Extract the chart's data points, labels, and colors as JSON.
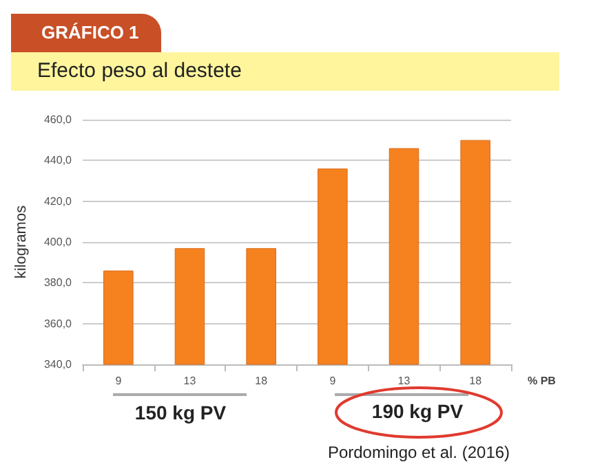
{
  "chart_data": {
    "type": "bar",
    "title": "Efecto peso al destete",
    "subtitle": "GRÁFICO 1",
    "ylabel": "kilogramos",
    "xlabel": "% PB",
    "categories": [
      "9",
      "13",
      "18",
      "9",
      "13",
      "18"
    ],
    "values": [
      386,
      397,
      397,
      436,
      446,
      450
    ],
    "color": "#f5821f",
    "ylim": [
      340,
      460
    ],
    "yticks": [
      {
        "value": 340,
        "label": "340,0"
      },
      {
        "value": 360,
        "label": "360,0"
      },
      {
        "value": 380,
        "label": "380,0"
      },
      {
        "value": 400,
        "label": "400,0"
      },
      {
        "value": 420,
        "label": "420,0"
      },
      {
        "value": 440,
        "label": "440,0"
      },
      {
        "value": 460,
        "label": "460,0"
      }
    ],
    "grid": "y",
    "annotations": [
      "150 kg PV",
      "190 kg PV",
      "Pordomingo et al. (2016)"
    ]
  }
}
